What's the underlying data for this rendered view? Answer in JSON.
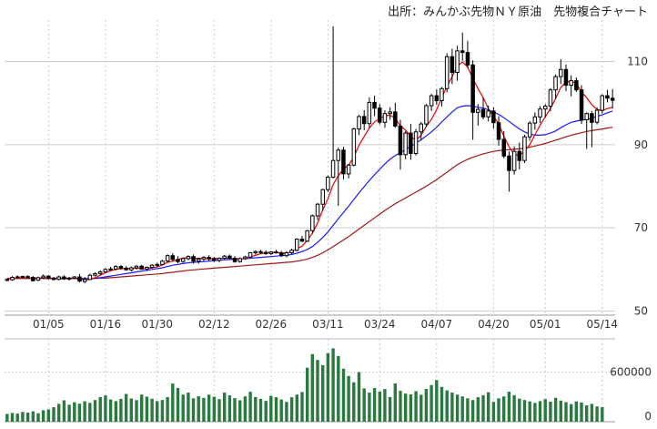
{
  "chart_data": [
    {
      "type": "candlestick",
      "title": "出所：みんかぶ先物ＮＹ原油　先物複合チャート",
      "x_tick_labels": [
        "01/05",
        "01/16",
        "01/30",
        "02/12",
        "02/26",
        "03/11",
        "03/24",
        "04/07",
        "04/20",
        "05/01",
        "05/14"
      ],
      "y_tick_labels": [
        "110",
        "90",
        "70",
        "50"
      ],
      "ylim": [
        49,
        120
      ],
      "grid": true,
      "colors": {
        "up": "#ffffff",
        "down": "#000000",
        "outline": "#000000",
        "ma_short": "#e60000",
        "ma_mid": "#1a1aff",
        "ma_long": "#a01818",
        "grid": "#cccccc"
      },
      "ohlc": [
        [
          57.6,
          57.8,
          57.1,
          57.5
        ],
        [
          57.5,
          58.4,
          57.3,
          58.1
        ],
        [
          58.1,
          58.6,
          57.8,
          58.2
        ],
        [
          58.2,
          58.5,
          57.9,
          58.3
        ],
        [
          58.3,
          58.6,
          57.8,
          58.0
        ],
        [
          58.1,
          58.4,
          57.1,
          57.3
        ],
        [
          57.4,
          58.3,
          57.2,
          58.0
        ],
        [
          58.0,
          58.8,
          57.7,
          58.4
        ],
        [
          58.4,
          58.6,
          57.6,
          57.8
        ],
        [
          57.8,
          58.2,
          57.3,
          57.6
        ],
        [
          57.6,
          58.5,
          57.4,
          58.2
        ],
        [
          58.2,
          58.6,
          57.5,
          57.7
        ],
        [
          57.7,
          58.2,
          57.3,
          57.9
        ],
        [
          57.9,
          58.4,
          57.7,
          58.2
        ],
        [
          58.2,
          58.9,
          56.9,
          57.2
        ],
        [
          57.1,
          58.2,
          56.7,
          57.6
        ],
        [
          57.6,
          59.0,
          57.5,
          58.6
        ],
        [
          58.6,
          59.3,
          58.3,
          59.0
        ],
        [
          59.0,
          59.8,
          58.6,
          59.4
        ],
        [
          59.4,
          60.3,
          59.1,
          60.0
        ],
        [
          60.0,
          60.6,
          59.6,
          60.1
        ],
        [
          60.1,
          61.0,
          59.8,
          60.7
        ],
        [
          60.7,
          61.1,
          59.9,
          60.3
        ],
        [
          60.3,
          60.8,
          59.7,
          59.9
        ],
        [
          59.9,
          60.7,
          59.5,
          60.4
        ],
        [
          60.4,
          61.0,
          60.0,
          60.8
        ],
        [
          60.8,
          61.1,
          59.9,
          60.1
        ],
        [
          60.1,
          60.7,
          59.6,
          60.5
        ],
        [
          60.5,
          61.3,
          60.2,
          61.0
        ],
        [
          61.0,
          61.6,
          60.6,
          61.2
        ],
        [
          61.2,
          62.3,
          60.9,
          62.0
        ],
        [
          62.0,
          63.6,
          61.7,
          63.3
        ],
        [
          63.3,
          63.9,
          62.0,
          62.4
        ],
        [
          62.4,
          63.2,
          61.5,
          61.9
        ],
        [
          61.9,
          62.9,
          61.6,
          62.6
        ],
        [
          62.6,
          63.4,
          62.2,
          63.1
        ],
        [
          63.1,
          63.6,
          61.4,
          62.0
        ],
        [
          62.0,
          62.8,
          61.4,
          62.5
        ],
        [
          62.5,
          63.2,
          62.0,
          62.9
        ],
        [
          62.9,
          63.4,
          62.1,
          62.6
        ],
        [
          62.6,
          63.0,
          61.8,
          62.2
        ],
        [
          62.2,
          62.9,
          61.7,
          62.7
        ],
        [
          62.7,
          63.5,
          62.4,
          63.2
        ],
        [
          63.2,
          63.6,
          62.4,
          62.7
        ],
        [
          62.7,
          63.2,
          61.6,
          61.9
        ],
        [
          61.9,
          62.9,
          61.6,
          62.6
        ],
        [
          62.6,
          63.3,
          62.3,
          63.0
        ],
        [
          63.0,
          64.2,
          62.8,
          64.0
        ],
        [
          64.0,
          64.6,
          63.6,
          64.3
        ],
        [
          64.3,
          64.7,
          63.7,
          64.1
        ],
        [
          64.1,
          64.6,
          63.5,
          63.8
        ],
        [
          63.8,
          64.4,
          63.4,
          64.2
        ],
        [
          64.2,
          64.7,
          63.8,
          64.0
        ],
        [
          64.0,
          64.5,
          63.0,
          63.3
        ],
        [
          63.3,
          64.4,
          62.9,
          64.0
        ],
        [
          64.0,
          65.0,
          63.7,
          64.6
        ],
        [
          64.6,
          67.5,
          64.3,
          67.3
        ],
        [
          67.3,
          68.1,
          66.6,
          66.8
        ],
        [
          66.8,
          69.5,
          66.6,
          69.3
        ],
        [
          69.3,
          73.2,
          68.6,
          72.9
        ],
        [
          72.9,
          76.0,
          71.9,
          75.7
        ],
        [
          75.7,
          79.4,
          74.2,
          79.2
        ],
        [
          79.2,
          82.6,
          78.6,
          82.2
        ],
        [
          82.2,
          118.5,
          81.9,
          86.2
        ],
        [
          86.2,
          89.3,
          75.3,
          88.7
        ],
        [
          88.7,
          89.5,
          81.7,
          83.0
        ],
        [
          83.0,
          85.4,
          81.9,
          85.1
        ],
        [
          85.1,
          94.1,
          84.8,
          93.8
        ],
        [
          93.8,
          97.2,
          92.3,
          96.8
        ],
        [
          96.8,
          98.3,
          93.5,
          95.1
        ],
        [
          95.1,
          101.4,
          94.0,
          100.2
        ],
        [
          100.2,
          101.8,
          96.9,
          98.8
        ],
        [
          98.8,
          99.8,
          94.9,
          95.4
        ],
        [
          95.4,
          98.3,
          94.1,
          97.5
        ],
        [
          97.5,
          99.0,
          96.0,
          97.9
        ],
        [
          97.9,
          100.1,
          94.1,
          94.5
        ],
        [
          94.5,
          96.0,
          84.0,
          87.6
        ],
        [
          87.6,
          93.3,
          86.5,
          92.8
        ],
        [
          92.8,
          95.0,
          86.4,
          87.9
        ],
        [
          87.9,
          93.8,
          87.4,
          93.1
        ],
        [
          93.1,
          95.5,
          91.0,
          95.0
        ],
        [
          95.0,
          99.8,
          94.3,
          99.4
        ],
        [
          99.4,
          102.2,
          98.1,
          101.8
        ],
        [
          101.8,
          103.3,
          99.6,
          100.6
        ],
        [
          100.6,
          103.9,
          99.2,
          103.5
        ],
        [
          103.5,
          112.0,
          102.6,
          111.2
        ],
        [
          111.2,
          113.1,
          104.6,
          107.4
        ],
        [
          107.4,
          113.8,
          105.4,
          112.6
        ],
        [
          112.6,
          117.0,
          110.2,
          112.2
        ],
        [
          112.2,
          115.0,
          108.4,
          109.2
        ],
        [
          109.2,
          110.3,
          91.2,
          97.8
        ],
        [
          97.8,
          99.8,
          94.6,
          98.5
        ],
        [
          98.5,
          101.4,
          96.1,
          96.7
        ],
        [
          96.7,
          99.4,
          95.6,
          98.1
        ],
        [
          98.1,
          99.0,
          93.9,
          95.3
        ],
        [
          95.3,
          96.9,
          89.8,
          91.3
        ],
        [
          91.3,
          93.3,
          86.7,
          87.3
        ],
        [
          87.3,
          88.4,
          78.7,
          83.8
        ],
        [
          83.8,
          89.6,
          82.8,
          88.4
        ],
        [
          88.4,
          90.5,
          84.1,
          86.2
        ],
        [
          86.2,
          92.4,
          85.6,
          91.9
        ],
        [
          91.9,
          95.7,
          91.0,
          95.2
        ],
        [
          95.2,
          97.8,
          93.6,
          96.7
        ],
        [
          96.7,
          99.3,
          95.2,
          98.6
        ],
        [
          98.6,
          99.8,
          96.5,
          99.3
        ],
        [
          99.3,
          103.6,
          98.0,
          103.2
        ],
        [
          103.2,
          106.9,
          101.1,
          106.4
        ],
        [
          106.4,
          110.6,
          104.6,
          108.1
        ],
        [
          108.1,
          109.3,
          102.9,
          104.3
        ],
        [
          104.3,
          106.7,
          101.6,
          105.4
        ],
        [
          105.4,
          106.2,
          102.7,
          103.2
        ],
        [
          103.2,
          104.3,
          95.0,
          96.0
        ],
        [
          96.0,
          97.8,
          89.0,
          97.5
        ],
        [
          97.5,
          98.1,
          89.4,
          95.4
        ],
        [
          95.4,
          99.0,
          94.9,
          98.3
        ],
        [
          98.3,
          102.1,
          97.5,
          101.8
        ],
        [
          101.8,
          103.2,
          100.2,
          101.2
        ],
        [
          101.2,
          103.4,
          98.7,
          100.7
        ]
      ],
      "moving_averages": [
        {
          "values": [
            57.8,
            57.8,
            57.9,
            57.9,
            57.9,
            57.8,
            57.9,
            58.0,
            57.9,
            57.8,
            57.8,
            57.8,
            57.8,
            57.9,
            57.6,
            57.5,
            57.6,
            58.0,
            58.6,
            59.2,
            59.7,
            60.0,
            60.2,
            60.2,
            60.2,
            60.3,
            60.2,
            60.2,
            60.4,
            60.6,
            61.1,
            61.7,
            62.0,
            62.4,
            62.7,
            62.8,
            62.6,
            62.7,
            62.6,
            62.5,
            62.6,
            62.6,
            62.7,
            62.7,
            62.5,
            62.5,
            62.6,
            63.0,
            63.4,
            63.8,
            64.0,
            64.1,
            64.1,
            63.9,
            63.9,
            64.2,
            65.0,
            65.6,
            67.0,
            68.7,
            71.2,
            74.3,
            77.0,
            80.4,
            82.6,
            84.2,
            85.1,
            87.0,
            89.9,
            92.0,
            94.0,
            95.5,
            96.3,
            97.0,
            97.1,
            96.4,
            94.5,
            93.5,
            92.0,
            91.0,
            92.3,
            94.4,
            96.1,
            98.4,
            101.3,
            104.1,
            106.4,
            108.9,
            109.9,
            108.7,
            106.0,
            103.5,
            101.3,
            98.7,
            96.7,
            95.1,
            92.0,
            89.5,
            87.7,
            87.4,
            88.5,
            90.0,
            92.4,
            94.7,
            96.7,
            98.7,
            101.1,
            103.8,
            105.1,
            105.3,
            104.7,
            102.7,
            101.3,
            99.6,
            98.5,
            98.2,
            98.7,
            99.0
          ]
        },
        {
          "values": [
            57.8,
            57.8,
            57.9,
            57.9,
            57.9,
            57.9,
            57.9,
            57.9,
            57.9,
            57.9,
            57.9,
            57.9,
            57.9,
            57.9,
            57.8,
            57.8,
            57.8,
            57.9,
            58.0,
            58.2,
            58.4,
            58.6,
            58.8,
            59.0,
            59.2,
            59.4,
            59.6,
            59.8,
            60.0,
            60.2,
            60.4,
            60.7,
            61.0,
            61.2,
            61.4,
            61.6,
            61.7,
            61.8,
            61.9,
            62.0,
            62.1,
            62.2,
            62.3,
            62.4,
            62.4,
            62.5,
            62.6,
            62.7,
            62.8,
            62.9,
            63.0,
            63.1,
            63.2,
            63.3,
            63.4,
            63.6,
            63.9,
            64.3,
            64.8,
            65.5,
            66.5,
            67.7,
            69.0,
            70.6,
            72.2,
            73.7,
            75.2,
            76.8,
            78.4,
            79.9,
            81.4,
            82.8,
            84.1,
            85.4,
            86.5,
            87.4,
            88.1,
            88.9,
            89.6,
            90.4,
            91.2,
            92.1,
            93.1,
            94.2,
            95.5,
            96.7,
            97.9,
            98.9,
            99.3,
            99.4,
            99.3,
            99.0,
            98.8,
            98.4,
            97.9,
            97.3,
            96.5,
            95.6,
            94.7,
            93.8,
            93.1,
            92.6,
            92.3,
            92.3,
            92.4,
            92.8,
            93.3,
            94.1,
            94.8,
            95.4,
            95.7,
            95.9,
            96.1,
            96.4,
            96.8,
            97.2,
            97.7,
            98.1
          ]
        },
        {
          "values": [
            57.8,
            57.8,
            57.8,
            57.8,
            57.8,
            57.8,
            57.8,
            57.8,
            57.8,
            57.8,
            57.8,
            57.8,
            57.8,
            57.8,
            57.8,
            57.8,
            57.8,
            57.8,
            57.9,
            57.9,
            58.0,
            58.1,
            58.2,
            58.3,
            58.4,
            58.5,
            58.6,
            58.7,
            58.8,
            58.9,
            59.0,
            59.2,
            59.3,
            59.5,
            59.6,
            59.8,
            59.9,
            60.0,
            60.1,
            60.2,
            60.3,
            60.4,
            60.5,
            60.6,
            60.7,
            60.8,
            60.9,
            61.0,
            61.1,
            61.2,
            61.3,
            61.4,
            61.5,
            61.6,
            61.7,
            61.8,
            62.0,
            62.2,
            62.5,
            62.9,
            63.4,
            64.0,
            64.7,
            65.5,
            66.3,
            67.1,
            67.9,
            68.8,
            69.7,
            70.6,
            71.5,
            72.4,
            73.3,
            74.2,
            75.0,
            75.8,
            76.5,
            77.2,
            77.9,
            78.6,
            79.3,
            80.0,
            80.8,
            81.6,
            82.5,
            83.4,
            84.3,
            85.2,
            85.9,
            86.5,
            87.0,
            87.4,
            87.8,
            88.1,
            88.4,
            88.6,
            88.7,
            88.8,
            88.9,
            89.0,
            89.2,
            89.4,
            89.7,
            90.0,
            90.3,
            90.7,
            91.1,
            91.5,
            91.9,
            92.3,
            92.6,
            92.9,
            93.2,
            93.4,
            93.6,
            93.8,
            94.0,
            94.2
          ]
        }
      ]
    },
    {
      "type": "bar",
      "y_tick_labels": [
        "600000",
        "0"
      ],
      "ylim": [
        0,
        1000000
      ],
      "color": "#2a7a3f",
      "values": [
        95000,
        105000,
        98000,
        118000,
        110000,
        125000,
        102000,
        138000,
        148000,
        175000,
        215000,
        258000,
        205000,
        235000,
        218000,
        246000,
        228000,
        262000,
        298000,
        318000,
        268000,
        248000,
        276000,
        335000,
        280000,
        260000,
        328000,
        302000,
        278000,
        248000,
        262000,
        298000,
        460000,
        408000,
        328000,
        352000,
        282000,
        308000,
        288000,
        326000,
        301000,
        272000,
        352000,
        318000,
        285000,
        258000,
        305000,
        362000,
        298000,
        276000,
        252000,
        312000,
        296000,
        268000,
        240000,
        295000,
        328000,
        358000,
        652000,
        815000,
        745000,
        682000,
        828000,
        886000,
        792000,
        640000,
        552000,
        476000,
        598000,
        402000,
        352000,
        405000,
        365000,
        395000,
        298000,
        462000,
        372000,
        340000,
        330000,
        368000,
        325000,
        396000,
        442000,
        502000,
        420000,
        378000,
        352000,
        328000,
        305000,
        282000,
        262000,
        296000,
        320000,
        355000,
        240000,
        282000,
        305000,
        362000,
        320000,
        278000,
        262000,
        245000,
        228000,
        248000,
        272000,
        242000,
        288000,
        255000,
        236000,
        212000,
        245000,
        232000,
        198000,
        215000,
        185000,
        176000
      ]
    }
  ]
}
